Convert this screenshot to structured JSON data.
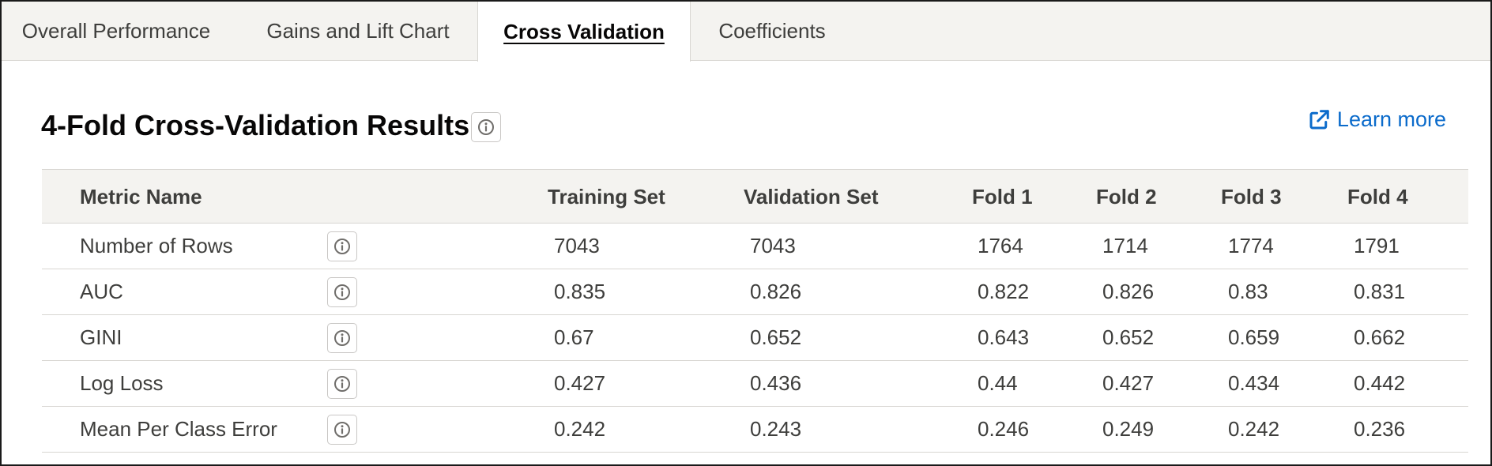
{
  "tabs": [
    {
      "label": "Overall Performance",
      "active": false
    },
    {
      "label": "Gains and Lift Chart",
      "active": false
    },
    {
      "label": "Cross Validation",
      "active": true
    },
    {
      "label": "Coefficients",
      "active": false
    }
  ],
  "header": {
    "title": "4-Fold Cross-Validation Results",
    "learn_more": "Learn more",
    "info_icon": "info-icon",
    "link_icon": "external-link-icon"
  },
  "table": {
    "columns": [
      "Metric Name",
      "Training Set",
      "Validation Set",
      "Fold 1",
      "Fold 2",
      "Fold 3",
      "Fold 4"
    ],
    "rows": [
      {
        "metric": "Number of Rows",
        "values": [
          "7043",
          "7043",
          "1764",
          "1714",
          "1774",
          "1791"
        ]
      },
      {
        "metric": "AUC",
        "values": [
          "0.835",
          "0.826",
          "0.822",
          "0.826",
          "0.83",
          "0.831"
        ]
      },
      {
        "metric": "GINI",
        "values": [
          "0.67",
          "0.652",
          "0.643",
          "0.652",
          "0.659",
          "0.662"
        ]
      },
      {
        "metric": "Log Loss",
        "values": [
          "0.427",
          "0.436",
          "0.44",
          "0.427",
          "0.434",
          "0.442"
        ]
      },
      {
        "metric": "Mean Per Class Error",
        "values": [
          "0.242",
          "0.243",
          "0.246",
          "0.249",
          "0.242",
          "0.236"
        ]
      }
    ]
  },
  "colors": {
    "accent_link": "#0b6bcb",
    "tab_bg": "#f4f3f0",
    "border": "#d8d6d2"
  }
}
